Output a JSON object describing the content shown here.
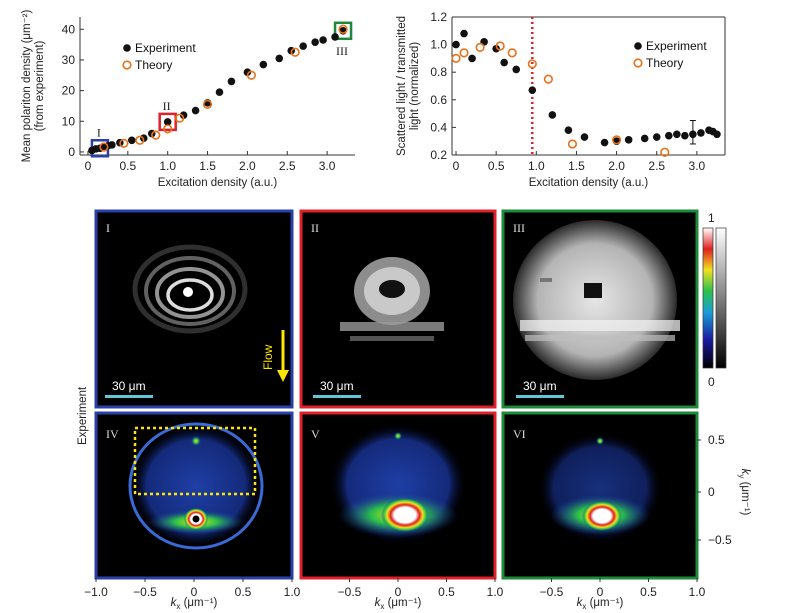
{
  "chart_data": [
    {
      "type": "scatter",
      "xlabel": "Excitation density (a.u.)",
      "ylabel": "Mean polariton density (μm⁻²)",
      "ylabel2": "(from experiment)",
      "xlim": [
        -0.1,
        3.35
      ],
      "ylim": [
        -1,
        44
      ],
      "xticks": [
        "0",
        "0.5",
        "1.0",
        "1.5",
        "2.0",
        "2.5",
        "3.0"
      ],
      "yticks": [
        "0",
        "10",
        "20",
        "30",
        "40"
      ],
      "series": [
        {
          "name": "Experiment",
          "x": [
            0.05,
            0.1,
            0.15,
            0.2,
            0.25,
            0.3,
            0.4,
            0.55,
            0.7,
            0.8,
            1.0,
            1.2,
            1.35,
            1.5,
            1.65,
            1.8,
            2.0,
            2.2,
            2.4,
            2.55,
            2.7,
            2.85,
            2.95,
            3.1,
            3.2
          ],
          "y": [
            0.5,
            1,
            1.2,
            1.5,
            2,
            2.3,
            3,
            3.8,
            4.5,
            6,
            9.8,
            12,
            13.5,
            16,
            19.5,
            23,
            26,
            28.5,
            30.5,
            33,
            34.5,
            35.8,
            36.5,
            37.5,
            39.5
          ]
        },
        {
          "name": "Theory",
          "x": [
            0.2,
            0.45,
            0.65,
            0.85,
            1.0,
            1.15,
            1.5,
            2.05,
            2.6,
            3.2
          ],
          "y": [
            1.6,
            2.8,
            3.8,
            5.5,
            7.5,
            11,
            15.5,
            25,
            32.5,
            40
          ]
        }
      ],
      "markers": [
        {
          "label": "I",
          "x": 0.15,
          "y": 1.2,
          "color": "#2a3fa8"
        },
        {
          "label": "II",
          "x": 1.0,
          "y": 9.8,
          "color": "#e0202a"
        },
        {
          "label": "III",
          "x": 3.2,
          "y": 39.5,
          "color": "#1d8a3a"
        }
      ]
    },
    {
      "type": "scatter",
      "xlabel": "Excitation density (a.u.)",
      "ylabel": "Scattered light / transmitted",
      "ylabel2": "light (normalized)",
      "xlim": [
        -0.05,
        3.35
      ],
      "ylim": [
        0.2,
        1.2
      ],
      "xticks": [
        "0",
        "0.5",
        "1.0",
        "1.5",
        "2.0",
        "2.5",
        "3.0"
      ],
      "yticks": [
        "0.2",
        "0.4",
        "0.6",
        "0.8",
        "1.0",
        "1.2"
      ],
      "threshold_x": 0.95,
      "series": [
        {
          "name": "Experiment",
          "x": [
            0.0,
            0.1,
            0.2,
            0.35,
            0.5,
            0.6,
            0.75,
            0.95,
            1.2,
            1.4,
            1.6,
            1.85,
            2.0,
            2.15,
            2.35,
            2.5,
            2.65,
            2.75,
            2.85,
            2.95,
            3.05,
            3.15,
            3.2,
            3.25
          ],
          "y": [
            1.0,
            1.08,
            0.9,
            1.02,
            0.97,
            0.87,
            0.82,
            0.67,
            0.49,
            0.38,
            0.33,
            0.29,
            0.3,
            0.31,
            0.32,
            0.33,
            0.34,
            0.35,
            0.34,
            0.35,
            0.36,
            0.38,
            0.37,
            0.35
          ]
        },
        {
          "name": "Theory",
          "x": [
            0.0,
            0.1,
            0.3,
            0.55,
            0.7,
            0.95,
            1.15,
            1.45,
            2.0,
            2.6
          ],
          "y": [
            0.9,
            0.94,
            0.98,
            0.99,
            0.94,
            0.86,
            0.75,
            0.28,
            0.31,
            0.22
          ]
        }
      ]
    }
  ],
  "panels": {
    "top": [
      {
        "label": "I",
        "scale": "30 μm",
        "color": "#2a3fa8"
      },
      {
        "label": "II",
        "scale": "30 μm",
        "color": "#e0202a"
      },
      {
        "label": "III",
        "scale": "30 μm",
        "color": "#1d8a3a"
      }
    ],
    "bottom": [
      {
        "label": "IV",
        "color": "#2a3fa8"
      },
      {
        "label": "V",
        "color": "#e0202a"
      },
      {
        "label": "VI",
        "color": "#1d8a3a"
      }
    ],
    "flow_label": "Flow",
    "experiment_label": "Experiment",
    "colorbar_max": "1",
    "colorbar_min": "0",
    "kx_label": "k",
    "kx_sub": "x",
    "kx_unit": " (μm⁻¹)",
    "ky_label": "k",
    "ky_sub": "y",
    "ky_unit": " (μm⁻¹)",
    "kx_ticks": [
      "−1.0",
      "−0.5",
      "0",
      "0.5",
      "1.0"
    ],
    "ky_ticks": [
      "0.5",
      "0",
      "−0.5"
    ]
  },
  "colors": {
    "experiment": "#111111",
    "theory": "#e8711a",
    "threshold": "#e0202a",
    "flow_arrow": "#ffe600",
    "scale_bar": "#5fc8d8",
    "dotted_box": "#ffe600"
  }
}
